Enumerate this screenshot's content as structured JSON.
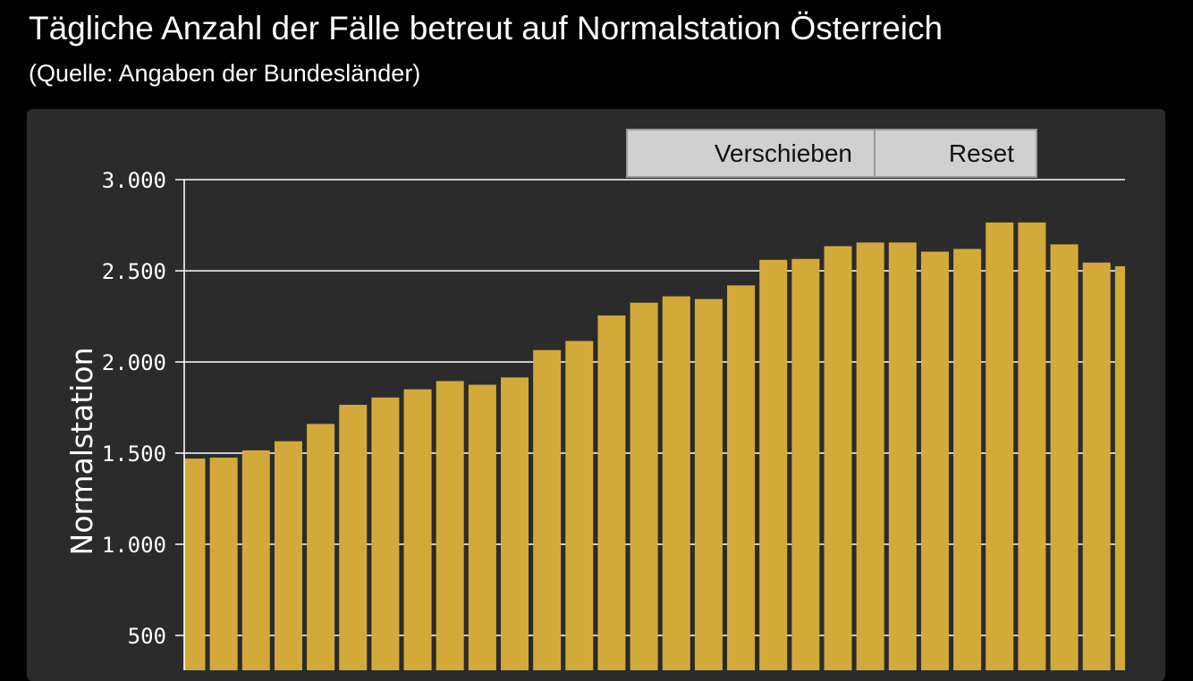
{
  "header": {
    "title": "Tägliche Anzahl der Fälle betreut auf Normalstation Österreich",
    "subtitle": "(Quelle: Angaben der Bundesländer)"
  },
  "toolbar": {
    "pan_label": "Verschieben",
    "reset_label": "Reset"
  },
  "colors": {
    "bar": "#d3aa3a",
    "panel": "#2b2b2b",
    "grid": "#ffffff"
  },
  "chart_data": {
    "type": "bar",
    "title": "Tägliche Anzahl der Fälle betreut auf Normalstation Österreich",
    "subtitle": "(Quelle: Angaben der Bundesländer)",
    "xlabel": "",
    "ylabel": "Normalstation",
    "ylim": [
      0,
      3000
    ],
    "yticks": [
      500,
      1000,
      1500,
      2000,
      2500,
      3000
    ],
    "ytick_labels": [
      "500",
      "1.000",
      "1.500",
      "2.000",
      "2.500",
      "3.000"
    ],
    "grid": true,
    "series": [
      {
        "values": [
          1470,
          1475,
          1515,
          1565,
          1660,
          1765,
          1805,
          1850,
          1895,
          1875,
          1915,
          2065,
          2115,
          2255,
          2325,
          2360,
          2345,
          2420,
          2560,
          2565,
          2635,
          2655,
          2655,
          2605,
          2620,
          2765,
          2765,
          2645,
          2545,
          2525
        ]
      }
    ]
  }
}
